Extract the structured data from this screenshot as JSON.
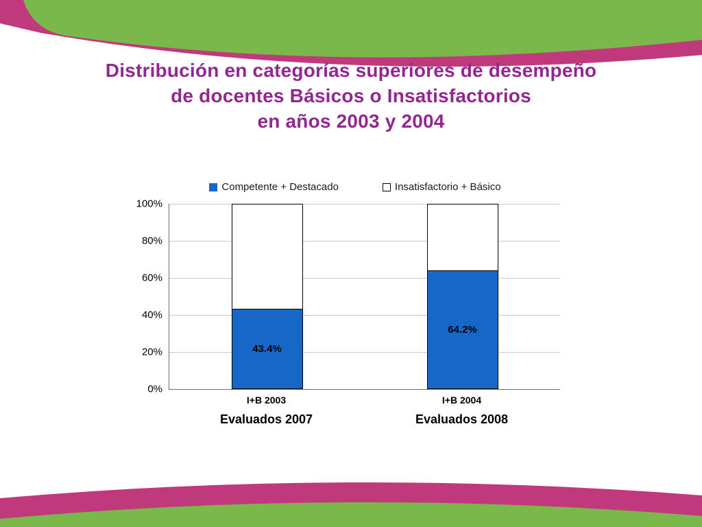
{
  "title": {
    "line1": "Distribución en categorías superiores de desempeño",
    "line2": "de docentes Básicos o Insatisfactorios",
    "line3": "en años 2003 y 2004"
  },
  "colors": {
    "title_text": "#92278F",
    "bar_fill": "#1767C8",
    "decor_green": "#7AB84C",
    "decor_pink": "#C0397D"
  },
  "chart_data": {
    "type": "bar",
    "stacked": true,
    "categories": [
      "I+B 2003",
      "I+B 2004"
    ],
    "sub_labels": [
      "Evaluados 2007",
      "Evaluados 2008"
    ],
    "series": [
      {
        "name": "Competente + Destacado",
        "values": [
          43.4,
          64.2
        ],
        "color": "#1767C8"
      },
      {
        "name": "Insatisfactorio + Básico",
        "values": [
          56.6,
          35.8
        ],
        "color": "#FFFFFF"
      }
    ],
    "data_labels": [
      "43.4%",
      "64.2%"
    ],
    "y_ticks": [
      "100%",
      "80%",
      "60%",
      "40%",
      "20%",
      "0%"
    ],
    "ylim": [
      0,
      100
    ],
    "grid": true,
    "legend_position": "top"
  }
}
